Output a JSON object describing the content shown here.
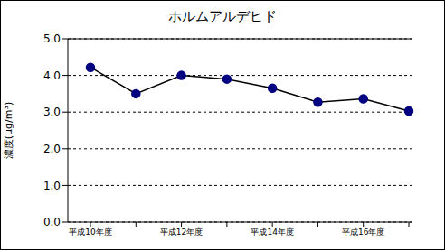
{
  "chart_data": {
    "type": "line",
    "title": "ホルムアルデヒド",
    "y_label": "濃度(μg/m³)",
    "categories": [
      "平成10年度",
      null,
      "平成12年度",
      null,
      "平成14年度",
      null,
      "平成16年度",
      null
    ],
    "series": [
      {
        "name": "ホルムアルデヒド",
        "color": "#000080",
        "values": [
          4.22,
          3.5,
          4.0,
          3.9,
          3.65,
          3.27,
          3.36,
          3.03
        ]
      }
    ],
    "ylim": [
      0,
      5
    ],
    "yticks": [
      {
        "value": 0,
        "label": "0.0"
      },
      {
        "value": 1,
        "label": "1.0"
      },
      {
        "value": 2,
        "label": "2.0"
      },
      {
        "value": 3,
        "label": "3.0"
      },
      {
        "value": 4,
        "label": "4.0"
      },
      {
        "value": 5,
        "label": "5.0"
      }
    ],
    "grid": true,
    "marker": "circle"
  }
}
